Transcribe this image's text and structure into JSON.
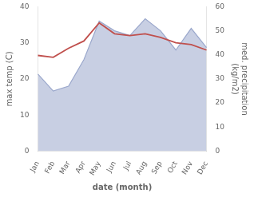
{
  "chart_data": {
    "type": "line",
    "xlabel": "date (month)",
    "ylabel": "max temp (C)",
    "y2label": "med. precipitation\n(kg/m2)",
    "categories": [
      "Jan",
      "Feb",
      "Mar",
      "Apr",
      "May",
      "Jun",
      "Jul",
      "Aug",
      "Sep",
      "Oct",
      "Nov",
      "Dec"
    ],
    "series": [
      {
        "type": "area",
        "axis": "y2",
        "color": "#9ba8cc",
        "values": [
          32.0,
          25.0,
          27.0,
          38.0,
          54.0,
          50.0,
          48.0,
          55.0,
          50.0,
          42.0,
          51.0,
          43.0
        ]
      },
      {
        "type": "line",
        "color": "#c0504d",
        "values": [
          26.5,
          26.0,
          28.5,
          30.5,
          35.5,
          32.5,
          32.0,
          32.5,
          31.5,
          30.0,
          29.5,
          28.0
        ]
      }
    ],
    "ylim": [
      0,
      40
    ],
    "yticks": [
      0,
      10,
      20,
      30,
      40
    ],
    "y2lim": [
      0,
      60
    ],
    "y2ticks": [
      0,
      10,
      20,
      30,
      40,
      50,
      60
    ],
    "grid": false
  }
}
